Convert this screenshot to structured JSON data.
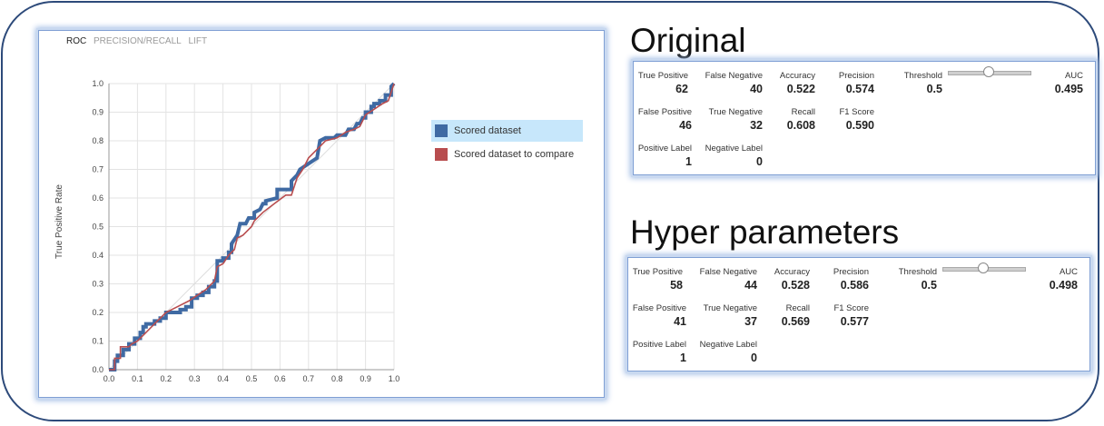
{
  "chart_tabs": [
    "ROC",
    "PRECISION/RECALL",
    "LIFT"
  ],
  "chart_data": {
    "type": "line",
    "title": "",
    "xlabel": "",
    "ylabel": "True Positive Rate",
    "xlim": [
      0,
      1
    ],
    "ylim": [
      0,
      1
    ],
    "x_ticks": [
      "0.0",
      "0.1",
      "0.2",
      "0.3",
      "0.4",
      "0.5",
      "0.6",
      "0.7",
      "0.8",
      "0.9",
      "1.0"
    ],
    "y_ticks": [
      "0.0",
      "0.1",
      "0.2",
      "0.3",
      "0.4",
      "0.5",
      "0.6",
      "0.7",
      "0.8",
      "0.9",
      "1.0"
    ],
    "grid": true,
    "legend_position": "right",
    "series": [
      {
        "name": "Scored dataset",
        "color": "#3f6aa3",
        "points": [
          [
            0,
            0
          ],
          [
            0.02,
            0
          ],
          [
            0.02,
            0.03
          ],
          [
            0.03,
            0.03
          ],
          [
            0.03,
            0.05
          ],
          [
            0.05,
            0.05
          ],
          [
            0.05,
            0.07
          ],
          [
            0.07,
            0.07
          ],
          [
            0.07,
            0.09
          ],
          [
            0.09,
            0.09
          ],
          [
            0.09,
            0.11
          ],
          [
            0.11,
            0.11
          ],
          [
            0.11,
            0.13
          ],
          [
            0.12,
            0.13
          ],
          [
            0.12,
            0.15
          ],
          [
            0.13,
            0.15
          ],
          [
            0.13,
            0.16
          ],
          [
            0.16,
            0.16
          ],
          [
            0.16,
            0.17
          ],
          [
            0.18,
            0.17
          ],
          [
            0.18,
            0.18
          ],
          [
            0.2,
            0.18
          ],
          [
            0.2,
            0.2
          ],
          [
            0.25,
            0.2
          ],
          [
            0.25,
            0.21
          ],
          [
            0.27,
            0.21
          ],
          [
            0.27,
            0.22
          ],
          [
            0.29,
            0.22
          ],
          [
            0.29,
            0.25
          ],
          [
            0.31,
            0.25
          ],
          [
            0.31,
            0.26
          ],
          [
            0.33,
            0.26
          ],
          [
            0.33,
            0.27
          ],
          [
            0.35,
            0.27
          ],
          [
            0.35,
            0.29
          ],
          [
            0.37,
            0.29
          ],
          [
            0.37,
            0.31
          ],
          [
            0.38,
            0.31
          ],
          [
            0.38,
            0.38
          ],
          [
            0.4,
            0.38
          ],
          [
            0.4,
            0.39
          ],
          [
            0.42,
            0.39
          ],
          [
            0.42,
            0.41
          ],
          [
            0.43,
            0.41
          ],
          [
            0.43,
            0.44
          ],
          [
            0.45,
            0.47
          ],
          [
            0.46,
            0.51
          ],
          [
            0.48,
            0.51
          ],
          [
            0.49,
            0.53
          ],
          [
            0.51,
            0.53
          ],
          [
            0.51,
            0.55
          ],
          [
            0.53,
            0.56
          ],
          [
            0.54,
            0.58
          ],
          [
            0.55,
            0.58
          ],
          [
            0.55,
            0.59
          ],
          [
            0.59,
            0.6
          ],
          [
            0.59,
            0.63
          ],
          [
            0.64,
            0.63
          ],
          [
            0.64,
            0.66
          ],
          [
            0.66,
            0.68
          ],
          [
            0.67,
            0.7
          ],
          [
            0.7,
            0.72
          ],
          [
            0.73,
            0.74
          ],
          [
            0.74,
            0.8
          ],
          [
            0.76,
            0.81
          ],
          [
            0.79,
            0.81
          ],
          [
            0.8,
            0.82
          ],
          [
            0.83,
            0.82
          ],
          [
            0.84,
            0.84
          ],
          [
            0.86,
            0.84
          ],
          [
            0.87,
            0.86
          ],
          [
            0.88,
            0.86
          ],
          [
            0.89,
            0.88
          ],
          [
            0.9,
            0.88
          ],
          [
            0.9,
            0.9
          ],
          [
            0.92,
            0.9
          ],
          [
            0.92,
            0.92
          ],
          [
            0.93,
            0.92
          ],
          [
            0.93,
            0.93
          ],
          [
            0.95,
            0.93
          ],
          [
            0.95,
            0.94
          ],
          [
            0.97,
            0.94
          ],
          [
            0.97,
            0.96
          ],
          [
            0.99,
            0.96
          ],
          [
            0.99,
            0.99
          ],
          [
            1.0,
            1.0
          ]
        ]
      },
      {
        "name": "Scored dataset to compare",
        "color": "#b84d4f",
        "points": [
          [
            0,
            0
          ],
          [
            0.02,
            0
          ],
          [
            0.02,
            0.04
          ],
          [
            0.04,
            0.04
          ],
          [
            0.04,
            0.08
          ],
          [
            0.07,
            0.08
          ],
          [
            0.08,
            0.09
          ],
          [
            0.1,
            0.1
          ],
          [
            0.13,
            0.13
          ],
          [
            0.16,
            0.16
          ],
          [
            0.2,
            0.2
          ],
          [
            0.24,
            0.22
          ],
          [
            0.28,
            0.24
          ],
          [
            0.31,
            0.26
          ],
          [
            0.34,
            0.28
          ],
          [
            0.37,
            0.31
          ],
          [
            0.38,
            0.36
          ],
          [
            0.4,
            0.37
          ],
          [
            0.42,
            0.4
          ],
          [
            0.44,
            0.42
          ],
          [
            0.45,
            0.46
          ],
          [
            0.47,
            0.47
          ],
          [
            0.5,
            0.5
          ],
          [
            0.51,
            0.52
          ],
          [
            0.54,
            0.55
          ],
          [
            0.58,
            0.58
          ],
          [
            0.62,
            0.61
          ],
          [
            0.64,
            0.61
          ],
          [
            0.66,
            0.67
          ],
          [
            0.68,
            0.7
          ],
          [
            0.7,
            0.74
          ],
          [
            0.72,
            0.76
          ],
          [
            0.74,
            0.78
          ],
          [
            0.76,
            0.8
          ],
          [
            0.8,
            0.81
          ],
          [
            0.83,
            0.83
          ],
          [
            0.86,
            0.84
          ],
          [
            0.88,
            0.85
          ],
          [
            0.9,
            0.89
          ],
          [
            0.93,
            0.91
          ],
          [
            0.96,
            0.93
          ],
          [
            0.98,
            0.94
          ],
          [
            0.99,
            0.97
          ],
          [
            1.0,
            1.0
          ]
        ]
      }
    ]
  },
  "sections": [
    {
      "title": "Original",
      "true_positive": {
        "label": "True Positive",
        "value": "62"
      },
      "false_negative": {
        "label": "False Negative",
        "value": "40"
      },
      "accuracy": {
        "label": "Accuracy",
        "value": "0.522"
      },
      "precision": {
        "label": "Precision",
        "value": "0.574"
      },
      "threshold": {
        "label": "Threshold",
        "value": "0.5",
        "fraction": 0.5
      },
      "auc": {
        "label": "AUC",
        "value": "0.495"
      },
      "false_positive": {
        "label": "False Positive",
        "value": "46"
      },
      "true_negative": {
        "label": "True Negative",
        "value": "32"
      },
      "recall": {
        "label": "Recall",
        "value": "0.608"
      },
      "f1": {
        "label": "F1 Score",
        "value": "0.590"
      },
      "positive_label": {
        "label": "Positive Label",
        "value": "1"
      },
      "negative_label": {
        "label": "Negative Label",
        "value": "0"
      }
    },
    {
      "title": "Hyper parameters",
      "true_positive": {
        "label": "True Positive",
        "value": "58"
      },
      "false_negative": {
        "label": "False Negative",
        "value": "44"
      },
      "accuracy": {
        "label": "Accuracy",
        "value": "0.528"
      },
      "precision": {
        "label": "Precision",
        "value": "0.586"
      },
      "threshold": {
        "label": "Threshold",
        "value": "0.5",
        "fraction": 0.5
      },
      "auc": {
        "label": "AUC",
        "value": "0.498"
      },
      "false_positive": {
        "label": "False Positive",
        "value": "41"
      },
      "true_negative": {
        "label": "True Negative",
        "value": "37"
      },
      "recall": {
        "label": "Recall",
        "value": "0.569"
      },
      "f1": {
        "label": "F1 Score",
        "value": "0.577"
      },
      "positive_label": {
        "label": "Positive Label",
        "value": "1"
      },
      "negative_label": {
        "label": "Negative Label",
        "value": "0"
      }
    }
  ]
}
